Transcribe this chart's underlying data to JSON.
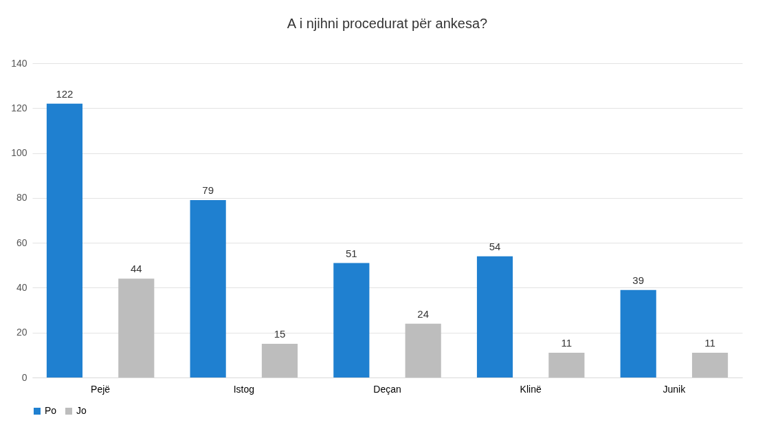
{
  "chart_data": {
    "type": "bar",
    "title": "A i njihni procedurat për ankesa?",
    "categories": [
      "Pejë",
      "Istog",
      "Deçan",
      "Klinë",
      "Junik"
    ],
    "series": [
      {
        "name": "Po",
        "color": "#1f80d0",
        "values": [
          122,
          79,
          51,
          54,
          39
        ]
      },
      {
        "name": "Jo",
        "color": "#bdbdbd",
        "values": [
          44,
          15,
          24,
          11,
          11
        ]
      }
    ],
    "ylim": [
      0,
      140
    ],
    "yticks": [
      0,
      20,
      40,
      60,
      80,
      100,
      120,
      140
    ],
    "grid": "y",
    "legend": "bottom",
    "data_labels": true
  }
}
